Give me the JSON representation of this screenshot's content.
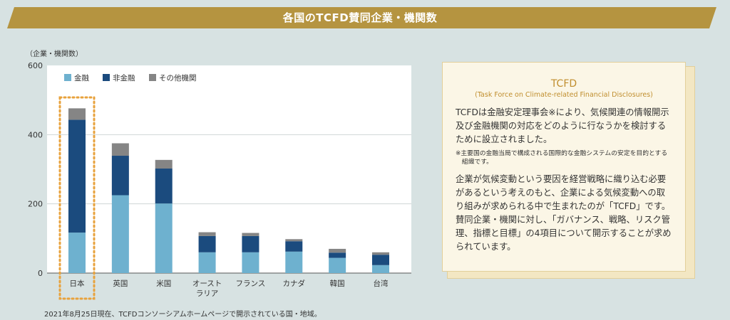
{
  "header": {
    "title": "各国のTCFD賛同企業・機関数"
  },
  "footnote": "2021年8月25日現在、TCFDコンソーシアムホームページで開示されている国・地域。",
  "info_panel": {
    "title": "TCFD",
    "subtitle": "(Task Force on Climate-related Financial Disclosures)",
    "paragraph1": "TCFDは金融安定理事会※により、気候関連の情報開示及び金融機関の対応をどのように行なうかを検討するために設立されました。",
    "note": "※主要国の金融当局で構成される国際的な金融システムの安定を目的とする組織です。",
    "paragraph2": "企業が気候変動という要因を経営戦略に織り込む必要があるという考えのもと、企業による気候変動への取り組みが求められる中で生まれたのが「TCFD」です。賛同企業・機関に対し、「ガバナンス、戦略、リスク管理、指標と目標」の4項目について開示することが求められています。"
  },
  "colors": {
    "banner": "#b59440",
    "finance": "#6eb1cf",
    "non_finance": "#1b4b7e",
    "other": "#858585",
    "highlight": "#e8a23c"
  },
  "chart_data": {
    "type": "bar",
    "stacked": true,
    "ylabel": "（企業・機関数）",
    "ylim": [
      0,
      600
    ],
    "yticks": [
      0,
      200,
      400,
      600
    ],
    "grid": true,
    "legend_position": "top-left",
    "categories": [
      "日本",
      "英国",
      "米国",
      "オースト\nラリア",
      "フランス",
      "カナダ",
      "韓国",
      "台湾"
    ],
    "highlight_category": "日本",
    "series": [
      {
        "name": "金融",
        "color": "#6eb1cf",
        "values": [
          117,
          225,
          201,
          60,
          60,
          62,
          44,
          23
        ]
      },
      {
        "name": "非金融",
        "color": "#1b4b7e",
        "values": [
          326,
          114,
          101,
          47,
          47,
          30,
          15,
          30
        ]
      },
      {
        "name": "その他機関",
        "color": "#858585",
        "values": [
          33,
          36,
          25,
          11,
          9,
          6,
          11,
          7
        ]
      }
    ]
  }
}
